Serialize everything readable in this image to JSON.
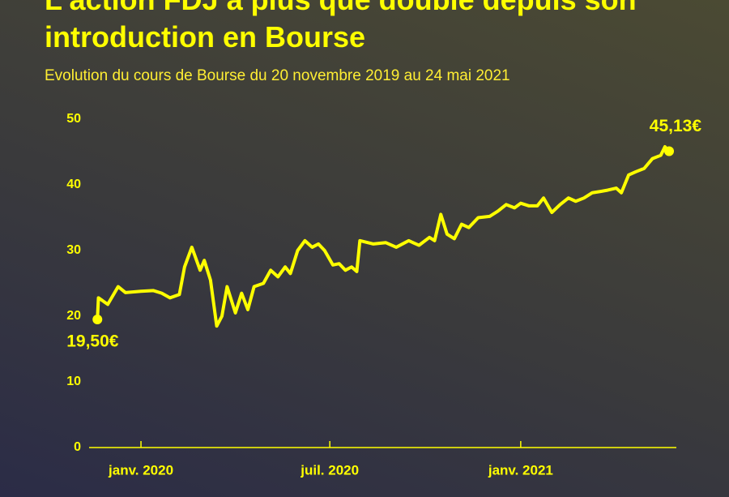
{
  "chart_data": {
    "type": "line",
    "title": "L'action FDJ a plus que doublé depuis son introduction en Bourse",
    "subtitle": "Evolution du cours de Bourse du 20 novembre 2019 au 24 mai 2021",
    "color": "#ffff00",
    "x": [
      "2019-11-20",
      "2019-11-21",
      "2019-11-30",
      "2019-12-10",
      "2019-12-17",
      "2020-01-01",
      "2020-01-13",
      "2020-01-21",
      "2020-01-29",
      "2020-02-07",
      "2020-02-12",
      "2020-02-19",
      "2020-02-27",
      "2020-03-02",
      "2020-03-08",
      "2020-03-14",
      "2020-03-19",
      "2020-03-24",
      "2020-04-01",
      "2020-04-07",
      "2020-04-13",
      "2020-04-19",
      "2020-04-28",
      "2020-05-05",
      "2020-05-12",
      "2020-05-19",
      "2020-05-24",
      "2020-05-31",
      "2020-06-07",
      "2020-06-14",
      "2020-06-20",
      "2020-06-26",
      "2020-07-04",
      "2020-07-10",
      "2020-07-16",
      "2020-07-22",
      "2020-07-27",
      "2020-07-30",
      "2020-08-12",
      "2020-08-24",
      "2020-09-03",
      "2020-09-15",
      "2020-09-25",
      "2020-10-05",
      "2020-10-10",
      "2020-10-16",
      "2020-10-22",
      "2020-10-29",
      "2020-11-05",
      "2020-11-12",
      "2020-11-21",
      "2020-12-02",
      "2020-12-10",
      "2020-12-18",
      "2020-12-26",
      "2021-01-01",
      "2021-01-09",
      "2021-01-17",
      "2021-01-23",
      "2021-01-31",
      "2021-02-08",
      "2021-02-16",
      "2021-02-23",
      "2021-03-03",
      "2021-03-11",
      "2021-03-19",
      "2021-03-26",
      "2021-04-03",
      "2021-04-08",
      "2021-04-15",
      "2021-04-22",
      "2021-04-30",
      "2021-05-08",
      "2021-05-16",
      "2021-05-20",
      "2021-05-24"
    ],
    "values": [
      19.5,
      22.8,
      21.8,
      24.5,
      23.6,
      23.8,
      23.9,
      23.5,
      22.8,
      23.3,
      27.5,
      30.5,
      27.0,
      28.5,
      25.5,
      18.5,
      20.0,
      24.5,
      20.5,
      23.5,
      21.0,
      24.5,
      25.0,
      27.0,
      26.0,
      27.5,
      26.5,
      30.0,
      31.5,
      30.5,
      31.0,
      30.0,
      27.8,
      28.0,
      27.0,
      27.5,
      26.8,
      31.5,
      31.0,
      31.2,
      30.5,
      31.5,
      30.8,
      32.0,
      31.5,
      35.5,
      32.5,
      31.8,
      34.0,
      33.5,
      35.0,
      35.2,
      36.0,
      37.0,
      36.5,
      37.2,
      36.8,
      36.8,
      38.0,
      35.8,
      37.0,
      38.0,
      37.5,
      38.0,
      38.8,
      39.0,
      39.2,
      39.5,
      38.8,
      41.5,
      42.0,
      42.5,
      44.0,
      44.5,
      45.8,
      45.13
    ],
    "annotations": [
      {
        "text": "19,50€",
        "x": "2019-11-20",
        "y": 19.5
      },
      {
        "text": "45,13€",
        "x": "2021-05-24",
        "y": 45.13
      }
    ],
    "xlim": [
      "2019-11-12",
      "2021-05-31"
    ],
    "xticks": [
      {
        "value": "2020-01-01",
        "label": "janv. 2020"
      },
      {
        "value": "2020-07-01",
        "label": "juil. 2020"
      },
      {
        "value": "2021-01-01",
        "label": "janv. 2021"
      }
    ],
    "ylim": [
      0,
      50
    ],
    "yticks": [
      0,
      10,
      20,
      30,
      40,
      50
    ],
    "grid": false
  }
}
